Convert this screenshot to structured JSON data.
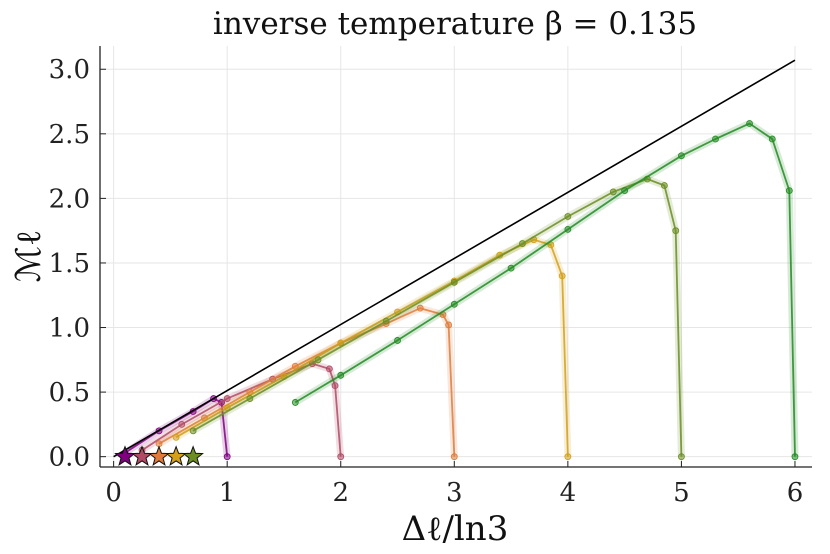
{
  "chart_data": {
    "type": "line",
    "title": "inverse temperature β = 0.135",
    "xlabel": "Δℓ/ln3",
    "ylabel": "ℳℓ",
    "xlim": [
      -0.12,
      6.15
    ],
    "ylim": [
      -0.08,
      3.18
    ],
    "xticks": [
      "0",
      "1",
      "2",
      "3",
      "4",
      "5",
      "6"
    ],
    "yticks": [
      "0.0",
      "0.5",
      "1.0",
      "1.5",
      "2.0",
      "2.5",
      "3.0"
    ],
    "grid": true,
    "legend": "none",
    "reference_line": {
      "x": [
        0.0,
        6.0
      ],
      "y": [
        0.0,
        3.07
      ],
      "color": "#000000"
    },
    "series": [
      {
        "color": "#800080",
        "x": [
          0.1,
          0.4,
          0.7,
          0.88,
          0.95,
          1.0
        ],
        "y": [
          0.03,
          0.2,
          0.35,
          0.45,
          0.42,
          0.0
        ]
      },
      {
        "color": "#b04a65",
        "x": [
          0.25,
          0.6,
          1.0,
          1.4,
          1.75,
          1.9,
          1.95,
          2.0
        ],
        "y": [
          0.05,
          0.25,
          0.45,
          0.6,
          0.72,
          0.68,
          0.55,
          0.0
        ]
      },
      {
        "color": "#e07b39",
        "x": [
          0.4,
          0.8,
          1.2,
          1.6,
          2.0,
          2.4,
          2.7,
          2.9,
          2.95,
          3.0
        ],
        "y": [
          0.1,
          0.3,
          0.5,
          0.7,
          0.88,
          1.03,
          1.15,
          1.1,
          1.02,
          0.0
        ]
      },
      {
        "color": "#d4a017",
        "x": [
          0.55,
          1.0,
          1.5,
          2.0,
          2.5,
          3.0,
          3.4,
          3.7,
          3.85,
          3.95,
          4.0
        ],
        "y": [
          0.15,
          0.38,
          0.62,
          0.88,
          1.12,
          1.36,
          1.56,
          1.68,
          1.64,
          1.4,
          0.0
        ]
      },
      {
        "color": "#6b8e23",
        "x": [
          0.7,
          1.2,
          1.8,
          2.4,
          3.0,
          3.6,
          4.0,
          4.4,
          4.7,
          4.85,
          4.95,
          5.0
        ],
        "y": [
          0.2,
          0.45,
          0.75,
          1.05,
          1.35,
          1.65,
          1.86,
          2.05,
          2.15,
          2.1,
          1.75,
          0.0
        ]
      },
      {
        "color": "#228b22",
        "x": [
          1.6,
          2.0,
          2.5,
          3.0,
          3.5,
          4.0,
          4.5,
          5.0,
          5.3,
          5.6,
          5.8,
          5.95,
          6.0
        ],
        "y": [
          0.42,
          0.63,
          0.9,
          1.18,
          1.46,
          1.76,
          2.06,
          2.33,
          2.46,
          2.58,
          2.46,
          2.06,
          0.0
        ]
      }
    ],
    "stars": [
      {
        "x": 0.1,
        "y": 0.0,
        "color": "#800080"
      },
      {
        "x": 0.25,
        "y": 0.0,
        "color": "#b04a65"
      },
      {
        "x": 0.4,
        "y": 0.0,
        "color": "#e07b39"
      },
      {
        "x": 0.55,
        "y": 0.0,
        "color": "#d4a017"
      },
      {
        "x": 0.7,
        "y": 0.0,
        "color": "#6b8e23"
      }
    ]
  }
}
